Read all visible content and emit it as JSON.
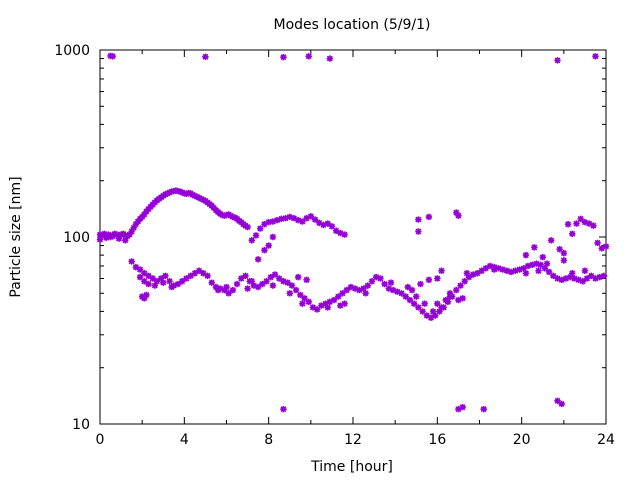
{
  "chart_data": {
    "type": "scatter",
    "title": "Modes location (5/9/1)",
    "xlabel": "Time [hour]",
    "ylabel": "Particle size [nm]",
    "xlim": [
      0,
      24
    ],
    "ylim": [
      10,
      1000
    ],
    "y_scale": "log",
    "x_ticks": [
      0,
      4,
      8,
      12,
      16,
      20,
      24
    ],
    "y_ticks": [
      10,
      100,
      1000
    ],
    "x_tick_labels": [
      "0",
      "4",
      "8",
      "12",
      "16",
      "20",
      "24"
    ],
    "y_tick_labels": [
      "10",
      "100",
      "1000"
    ],
    "grid": false,
    "legend": "none",
    "marker_color": "#9400d3",
    "series": [
      {
        "points": [
          [
            0.0,
            103
          ],
          [
            0.1,
            102
          ],
          [
            0.2,
            104
          ],
          [
            0.3,
            101
          ],
          [
            0.4,
            103
          ],
          [
            0.5,
            100
          ],
          [
            0.6,
            102
          ],
          [
            0.7,
            104
          ],
          [
            0.8,
            103
          ],
          [
            0.9,
            101
          ],
          [
            1.0,
            103
          ],
          [
            1.1,
            104
          ],
          [
            1.2,
            102
          ],
          [
            1.3,
            101
          ],
          [
            1.4,
            103
          ],
          [
            1.5,
            107
          ],
          [
            1.6,
            112
          ],
          [
            1.7,
            117
          ],
          [
            1.8,
            121
          ],
          [
            1.9,
            125
          ],
          [
            2.0,
            128
          ],
          [
            2.1,
            132
          ],
          [
            2.2,
            137
          ],
          [
            2.3,
            141
          ],
          [
            2.4,
            145
          ],
          [
            2.5,
            149
          ],
          [
            2.6,
            153
          ],
          [
            2.7,
            157
          ],
          [
            2.8,
            160
          ],
          [
            2.9,
            163
          ],
          [
            3.0,
            166
          ],
          [
            3.1,
            169
          ],
          [
            3.2,
            171
          ],
          [
            3.3,
            173
          ],
          [
            3.4,
            175
          ],
          [
            3.5,
            176
          ],
          [
            3.6,
            177
          ],
          [
            3.7,
            176
          ],
          [
            3.8,
            175
          ],
          [
            3.9,
            173
          ],
          [
            4.0,
            171
          ],
          [
            4.1,
            170
          ],
          [
            4.2,
            172
          ],
          [
            4.3,
            171
          ],
          [
            4.4,
            168
          ],
          [
            4.5,
            166
          ],
          [
            4.6,
            164
          ],
          [
            4.7,
            162
          ],
          [
            4.8,
            160
          ],
          [
            4.9,
            158
          ],
          [
            5.0,
            156
          ],
          [
            5.1,
            153
          ],
          [
            5.2,
            150
          ],
          [
            5.3,
            147
          ],
          [
            5.4,
            143
          ],
          [
            5.5,
            139
          ],
          [
            5.6,
            136
          ],
          [
            5.7,
            133
          ],
          [
            5.8,
            131
          ],
          [
            5.9,
            130
          ],
          [
            6.0,
            131
          ],
          [
            6.1,
            132
          ],
          [
            6.2,
            130
          ],
          [
            6.3,
            128
          ],
          [
            6.4,
            127
          ],
          [
            6.5,
            125
          ],
          [
            6.6,
            122
          ],
          [
            6.7,
            120
          ],
          [
            6.8,
            117
          ],
          [
            6.9,
            115
          ],
          [
            7.0,
            113
          ],
          [
            7.2,
            96
          ],
          [
            7.4,
            102
          ],
          [
            7.6,
            111
          ],
          [
            7.8,
            117
          ],
          [
            8.0,
            120
          ],
          [
            8.2,
            121
          ],
          [
            8.4,
            123
          ],
          [
            8.6,
            125
          ],
          [
            8.8,
            126
          ],
          [
            9.0,
            128
          ],
          [
            9.2,
            126
          ],
          [
            9.4,
            123
          ],
          [
            9.6,
            121
          ],
          [
            9.8,
            126
          ],
          [
            10.0,
            129
          ],
          [
            10.2,
            124
          ],
          [
            10.4,
            119
          ],
          [
            10.6,
            116
          ],
          [
            10.8,
            118
          ],
          [
            11.0,
            114
          ],
          [
            11.2,
            108
          ],
          [
            11.4,
            105
          ],
          [
            11.6,
            103
          ],
          [
            0.0,
            97
          ],
          [
            0.3,
            99
          ],
          [
            0.6,
            101
          ],
          [
            0.9,
            98
          ],
          [
            1.2,
            96
          ],
          [
            1.5,
            74
          ],
          [
            1.7,
            69
          ],
          [
            1.9,
            67
          ],
          [
            2.1,
            64
          ],
          [
            2.3,
            62
          ],
          [
            2.5,
            60
          ],
          [
            2.7,
            58
          ],
          [
            2.9,
            60
          ],
          [
            3.1,
            62
          ],
          [
            3.3,
            58
          ],
          [
            3.5,
            55
          ],
          [
            3.7,
            56
          ],
          [
            3.9,
            58
          ],
          [
            4.1,
            60
          ],
          [
            4.3,
            62
          ],
          [
            4.5,
            64
          ],
          [
            4.7,
            66
          ],
          [
            4.9,
            64
          ],
          [
            5.1,
            62
          ],
          [
            5.3,
            57
          ],
          [
            5.5,
            54
          ],
          [
            5.7,
            53
          ],
          [
            5.9,
            52
          ],
          [
            6.1,
            50
          ],
          [
            6.3,
            52
          ],
          [
            6.5,
            56
          ],
          [
            6.7,
            60
          ],
          [
            6.9,
            62
          ],
          [
            7.1,
            58
          ],
          [
            7.3,
            55
          ],
          [
            7.5,
            54
          ],
          [
            7.7,
            56
          ],
          [
            7.9,
            58
          ],
          [
            8.1,
            61
          ],
          [
            8.3,
            63
          ],
          [
            8.5,
            60
          ],
          [
            8.7,
            58
          ],
          [
            8.9,
            57
          ],
          [
            9.1,
            55
          ],
          [
            9.3,
            52
          ],
          [
            9.5,
            49
          ],
          [
            9.7,
            47
          ],
          [
            9.9,
            45
          ],
          [
            10.1,
            42
          ],
          [
            10.3,
            41
          ],
          [
            10.5,
            43
          ],
          [
            10.7,
            44
          ],
          [
            10.9,
            45
          ],
          [
            11.1,
            46
          ],
          [
            11.3,
            48
          ],
          [
            11.5,
            50
          ],
          [
            11.7,
            52
          ],
          [
            11.9,
            54
          ],
          [
            12.1,
            53
          ],
          [
            12.3,
            52
          ],
          [
            12.5,
            53
          ],
          [
            12.7,
            55
          ],
          [
            12.9,
            58
          ],
          [
            13.1,
            61
          ],
          [
            13.3,
            60
          ],
          [
            13.5,
            56
          ],
          [
            13.7,
            53
          ],
          [
            13.9,
            52
          ],
          [
            14.1,
            51
          ],
          [
            14.3,
            50
          ],
          [
            14.5,
            48
          ],
          [
            14.7,
            46
          ],
          [
            14.9,
            44
          ],
          [
            15.1,
            42
          ],
          [
            15.3,
            40
          ],
          [
            15.5,
            38
          ],
          [
            15.7,
            37
          ],
          [
            15.9,
            38
          ],
          [
            16.1,
            40
          ],
          [
            16.3,
            42
          ],
          [
            16.5,
            45
          ],
          [
            16.7,
            48
          ],
          [
            16.9,
            52
          ],
          [
            17.1,
            55
          ],
          [
            17.3,
            58
          ],
          [
            17.5,
            61
          ],
          [
            17.7,
            63
          ],
          [
            17.9,
            64
          ],
          [
            18.1,
            66
          ],
          [
            18.3,
            68
          ],
          [
            18.5,
            70
          ],
          [
            18.7,
            69
          ],
          [
            18.9,
            68
          ],
          [
            19.1,
            67
          ],
          [
            19.3,
            66
          ],
          [
            19.5,
            65
          ],
          [
            19.7,
            66
          ],
          [
            19.9,
            67
          ],
          [
            20.1,
            68
          ],
          [
            20.3,
            70
          ],
          [
            20.5,
            71
          ],
          [
            20.7,
            72
          ],
          [
            20.9,
            71
          ],
          [
            21.1,
            68
          ],
          [
            21.3,
            65
          ],
          [
            21.5,
            62
          ],
          [
            21.7,
            60
          ],
          [
            21.9,
            59
          ],
          [
            22.1,
            60
          ],
          [
            22.3,
            61
          ],
          [
            22.5,
            60
          ],
          [
            22.7,
            59
          ],
          [
            22.9,
            58
          ],
          [
            23.1,
            60
          ],
          [
            23.3,
            62
          ],
          [
            23.5,
            60
          ],
          [
            23.7,
            61
          ],
          [
            23.9,
            62
          ],
          [
            1.9,
            61
          ],
          [
            2.1,
            58
          ],
          [
            2.3,
            56
          ],
          [
            2.6,
            55
          ],
          [
            3.0,
            57
          ],
          [
            3.4,
            54
          ],
          [
            5.6,
            52
          ],
          [
            6.0,
            54
          ],
          [
            7.0,
            53
          ],
          [
            8.2,
            55
          ],
          [
            9.0,
            50
          ],
          [
            9.6,
            44
          ],
          [
            10.8,
            42
          ],
          [
            12.6,
            50
          ],
          [
            13.8,
            57
          ],
          [
            14.6,
            54
          ],
          [
            15.0,
            48
          ],
          [
            15.4,
            44
          ],
          [
            15.8,
            40
          ],
          [
            16.0,
            44
          ],
          [
            16.4,
            46
          ],
          [
            16.6,
            50
          ],
          [
            17.0,
            46
          ],
          [
            17.2,
            47
          ],
          [
            20.2,
            64
          ],
          [
            20.8,
            66
          ],
          [
            21.2,
            72
          ],
          [
            22.4,
            64
          ],
          [
            23.0,
            66
          ],
          [
            2.0,
            48
          ],
          [
            2.1,
            47
          ],
          [
            2.2,
            49
          ],
          [
            7.2,
            58
          ],
          [
            7.5,
            76
          ],
          [
            7.8,
            85
          ],
          [
            8.0,
            90
          ],
          [
            8.2,
            100
          ],
          [
            9.4,
            61
          ],
          [
            9.8,
            59
          ],
          [
            11.4,
            43
          ],
          [
            11.6,
            44
          ],
          [
            14.8,
            52
          ],
          [
            15.2,
            56
          ],
          [
            15.6,
            59
          ],
          [
            16.2,
            66
          ],
          [
            16.6,
            48
          ],
          [
            17.4,
            64
          ],
          [
            18.7,
            67
          ],
          [
            20.2,
            80
          ],
          [
            20.6,
            88
          ],
          [
            21.0,
            78
          ],
          [
            21.4,
            96
          ],
          [
            21.8,
            86
          ],
          [
            22.0,
            75
          ],
          [
            22.2,
            117
          ],
          [
            22.4,
            104
          ],
          [
            22.6,
            118
          ],
          [
            22.8,
            125
          ],
          [
            23.0,
            120
          ],
          [
            23.2,
            118
          ],
          [
            23.4,
            115
          ],
          [
            23.6,
            93
          ],
          [
            23.8,
            87
          ],
          [
            24.0,
            89
          ],
          [
            15.1,
            124
          ],
          [
            15.1,
            107
          ],
          [
            15.6,
            128
          ],
          [
            16.0,
            60
          ],
          [
            16.2,
            42
          ],
          [
            16.9,
            135
          ],
          [
            17.0,
            130
          ],
          [
            22.0,
            82
          ],
          [
            0.5,
            930
          ],
          [
            0.6,
            925
          ],
          [
            5.0,
            920
          ],
          [
            8.7,
            915
          ],
          [
            9.9,
            925
          ],
          [
            10.9,
            900
          ],
          [
            21.7,
            880
          ],
          [
            23.5,
            925
          ],
          [
            8.7,
            12
          ],
          [
            17.0,
            12
          ],
          [
            17.2,
            12.3
          ],
          [
            18.2,
            12
          ],
          [
            21.7,
            13.3
          ],
          [
            21.9,
            12.8
          ]
        ]
      }
    ]
  }
}
